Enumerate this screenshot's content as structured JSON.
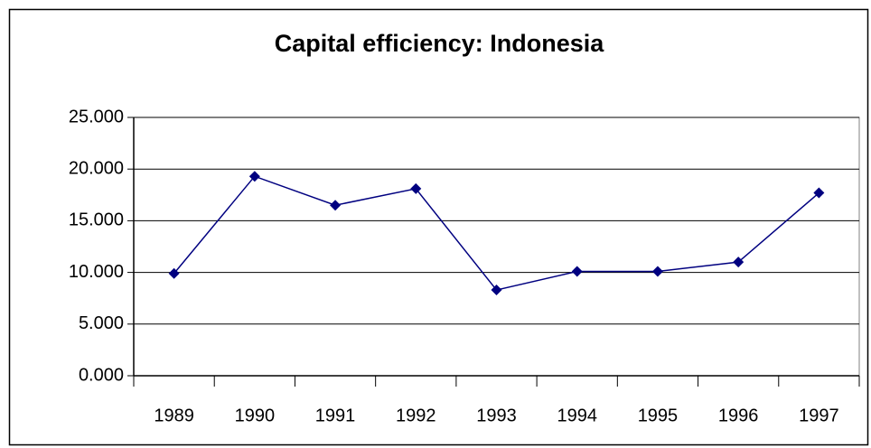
{
  "chart_data": {
    "type": "line",
    "title": "Capital efficiency: Indonesia",
    "categories": [
      "1989",
      "1990",
      "1991",
      "1992",
      "1993",
      "1994",
      "1995",
      "1996",
      "1997"
    ],
    "values": [
      9.9,
      19.3,
      16.5,
      18.1,
      8.3,
      10.1,
      10.1,
      11.0,
      17.7
    ],
    "color": "#000080",
    "ylim": [
      0,
      25
    ],
    "yticks": [
      {
        "value": 0,
        "label": "0.000"
      },
      {
        "value": 5,
        "label": "5.000"
      },
      {
        "value": 10,
        "label": "10.000"
      },
      {
        "value": 15,
        "label": "15.000"
      },
      {
        "value": 20,
        "label": "20.000"
      },
      {
        "value": 25,
        "label": "25.000"
      }
    ],
    "grid": true
  }
}
